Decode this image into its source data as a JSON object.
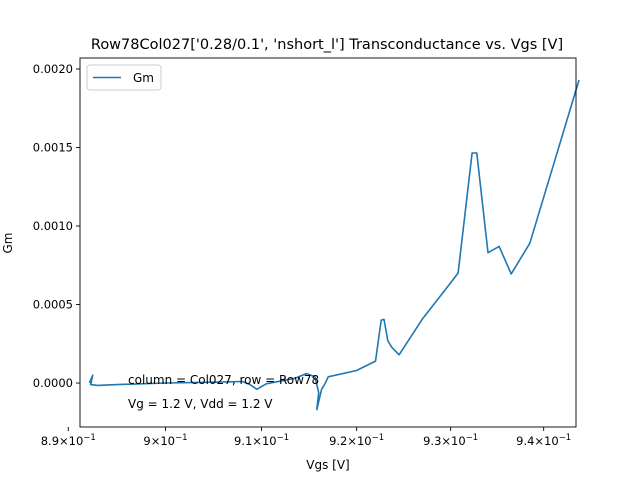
{
  "chart_data": {
    "type": "line",
    "title": "Row78Col027['0.28/0.1', 'nshort_l'] Transconductance vs. Vgs [V]",
    "xlabel": "Vgs [V]",
    "ylabel": "Gm",
    "x_scale": "log",
    "xlim": [
      0.8912,
      0.9435
    ],
    "ylim": [
      -0.00028,
      0.00207
    ],
    "x_ticks": [
      {
        "value": 0.89,
        "base": "8.9",
        "exp": "−1"
      },
      {
        "value": 0.9,
        "base": "9",
        "exp": "−1"
      },
      {
        "value": 0.91,
        "base": "9.1",
        "exp": "−1"
      },
      {
        "value": 0.92,
        "base": "9.2",
        "exp": "−1"
      },
      {
        "value": 0.93,
        "base": "9.3",
        "exp": "−1"
      },
      {
        "value": 0.94,
        "base": "9.4",
        "exp": "−1"
      }
    ],
    "y_ticks": [
      {
        "value": 0.0,
        "label": "0.0000"
      },
      {
        "value": 0.0005,
        "label": "0.0005"
      },
      {
        "value": 0.001,
        "label": "0.0010"
      },
      {
        "value": 0.0015,
        "label": "0.0015"
      },
      {
        "value": 0.002,
        "label": "0.0020"
      }
    ],
    "legend": {
      "placement": "top-left",
      "entries": [
        "Gm"
      ]
    },
    "grid": false,
    "series": [
      {
        "name": "Gm",
        "color": "#1f77b4",
        "points": [
          [
            0.8922,
            5e-06
          ],
          [
            0.8925,
            5e-05
          ],
          [
            0.8923,
            -1e-05
          ],
          [
            0.893,
            -1.5e-05
          ],
          [
            0.895,
            -1e-05
          ],
          [
            0.9,
            0.0
          ],
          [
            0.905,
            5e-06
          ],
          [
            0.908,
            1e-05
          ],
          [
            0.9088,
            -1e-05
          ],
          [
            0.9095,
            -4e-05
          ],
          [
            0.9105,
            -5e-06
          ],
          [
            0.9135,
            3e-05
          ],
          [
            0.9147,
            6e-05
          ],
          [
            0.9156,
            4e-05
          ],
          [
            0.916,
            -6e-05
          ],
          [
            0.9158,
            -0.00017
          ],
          [
            0.9163,
            -4e-05
          ],
          [
            0.9167,
            0.0
          ],
          [
            0.917,
            4e-05
          ],
          [
            0.92,
            8e-05
          ],
          [
            0.922,
            0.00014
          ],
          [
            0.9226,
            0.0004
          ],
          [
            0.9229,
            0.000405
          ],
          [
            0.9233,
            0.00027
          ],
          [
            0.9237,
            0.00023
          ],
          [
            0.9245,
            0.00018
          ],
          [
            0.927,
            0.00041
          ],
          [
            0.9295,
            0.0006
          ],
          [
            0.9308,
            0.0007
          ],
          [
            0.9323,
            0.001465
          ],
          [
            0.9328,
            0.001465
          ],
          [
            0.934,
            0.00083
          ],
          [
            0.9352,
            0.00087
          ],
          [
            0.9365,
            0.000695
          ],
          [
            0.9385,
            0.00089
          ],
          [
            0.9438,
            0.001925
          ]
        ]
      }
    ],
    "annotations": [
      "column = Col027, row = Row78",
      "Vg = 1.2 V, Vdd = 1.2 V"
    ]
  }
}
